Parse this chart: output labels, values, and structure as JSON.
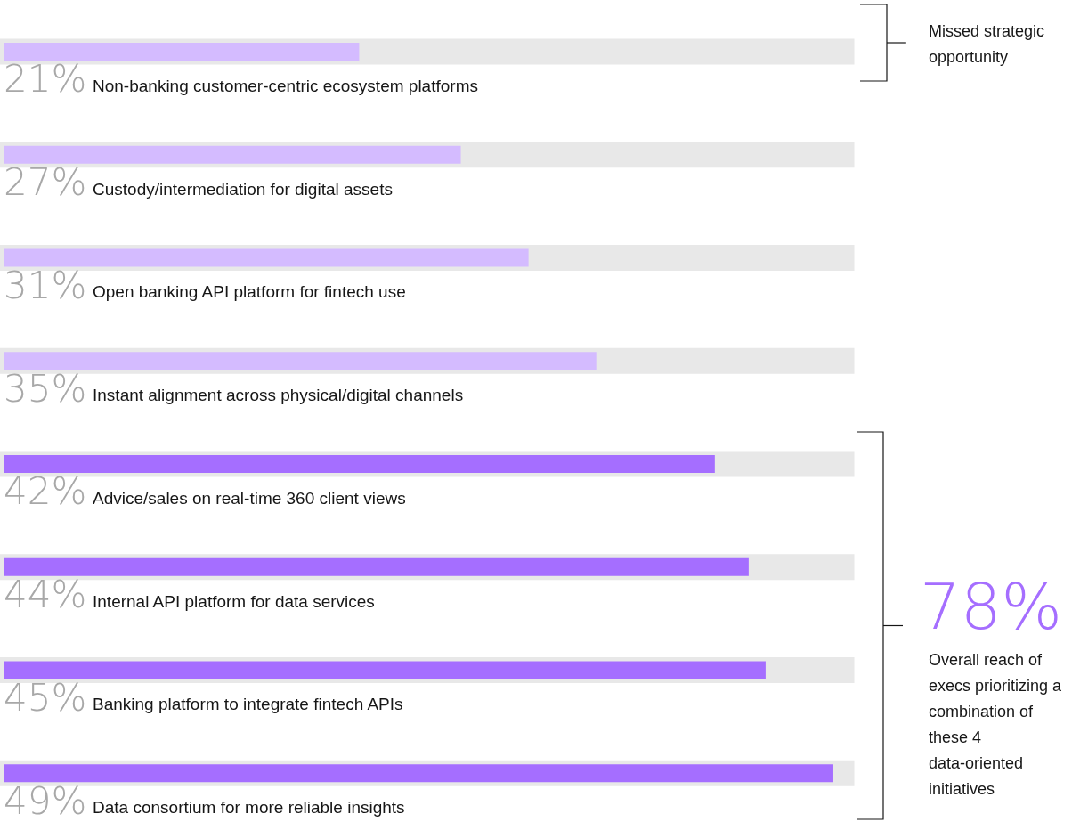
{
  "chart_data": {
    "type": "bar",
    "orientation": "horizontal",
    "categories": [
      "Non-banking customer-centric ecosystem platforms",
      "Custody/intermediation for digital assets",
      "Open banking API platform for fintech use",
      "Instant alignment across physical/digital channels",
      "Advice/sales on real-time 360 client views",
      "Internal API platform for data services",
      "Banking platform to integrate fintech APIs",
      "Data consortium for more reliable insights"
    ],
    "values": [
      21,
      27,
      31,
      35,
      42,
      44,
      45,
      49
    ],
    "value_labels": [
      "21%",
      "27%",
      "31%",
      "35%",
      "42%",
      "44%",
      "45%",
      "49%"
    ],
    "colors": [
      "#d4bbff",
      "#d4bbff",
      "#d4bbff",
      "#d4bbff",
      "#a56eff",
      "#a56eff",
      "#a56eff",
      "#a56eff"
    ],
    "xlim": [
      0,
      50
    ],
    "tick_labels": false,
    "grid": false,
    "annotations": [
      "Missed strategic opportunity",
      "78%",
      "Overall reach of execs prioritizing a combination of these 4 data-oriented initiatives"
    ]
  }
}
